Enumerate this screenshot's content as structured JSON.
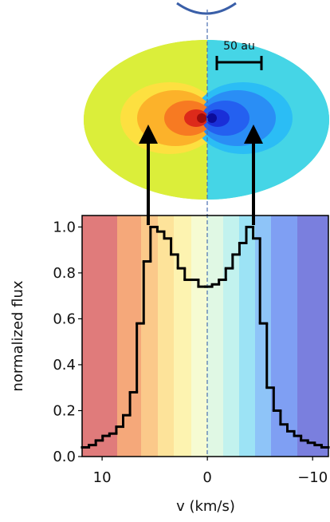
{
  "chart_data": {
    "type": "histogram",
    "scale_label": "50 au",
    "xlabel": "v (km/s)",
    "ylabel": "normalized flux",
    "xlim": [
      11.9,
      -11.5
    ],
    "ylim": [
      0,
      1.05
    ],
    "xticks": [
      10,
      {
        "value": 0,
        "label": "0"
      },
      {
        "value": -10,
        "label": "−10"
      }
    ],
    "yticks": [
      {
        "value": 0,
        "label": "0.0"
      },
      {
        "value": 0.2,
        "label": "0.2"
      },
      {
        "value": 0.4,
        "label": "0.4"
      },
      {
        "value": 0.6,
        "label": "0.6"
      },
      {
        "value": 0.8,
        "label": "0.8"
      },
      {
        "value": 1,
        "label": "1.0"
      }
    ],
    "color": "#000000",
    "bins": [
      11.9,
      11.25,
      10.6,
      9.95,
      9.3,
      8.65,
      8.0,
      7.35,
      6.7,
      6.05,
      5.4,
      4.75,
      4.1,
      3.45,
      2.8,
      2.15,
      1.5,
      0.85,
      0.2,
      -0.45,
      -1.1,
      -1.75,
      -2.4,
      -3.05,
      -3.7,
      -4.35,
      -5.0,
      -5.65,
      -6.3,
      -6.95,
      -7.6,
      -8.25,
      -8.9,
      -9.55,
      -10.2,
      -10.85,
      -11.5
    ],
    "values": [
      0.04,
      0.05,
      0.07,
      0.09,
      0.1,
      0.13,
      0.18,
      0.28,
      0.58,
      0.85,
      1.0,
      0.98,
      0.95,
      0.88,
      0.82,
      0.77,
      0.77,
      0.74,
      0.74,
      0.75,
      0.77,
      0.82,
      0.88,
      0.93,
      1.0,
      0.95,
      0.58,
      0.3,
      0.2,
      0.14,
      0.11,
      0.09,
      0.07,
      0.06,
      0.05,
      0.04
    ]
  }
}
